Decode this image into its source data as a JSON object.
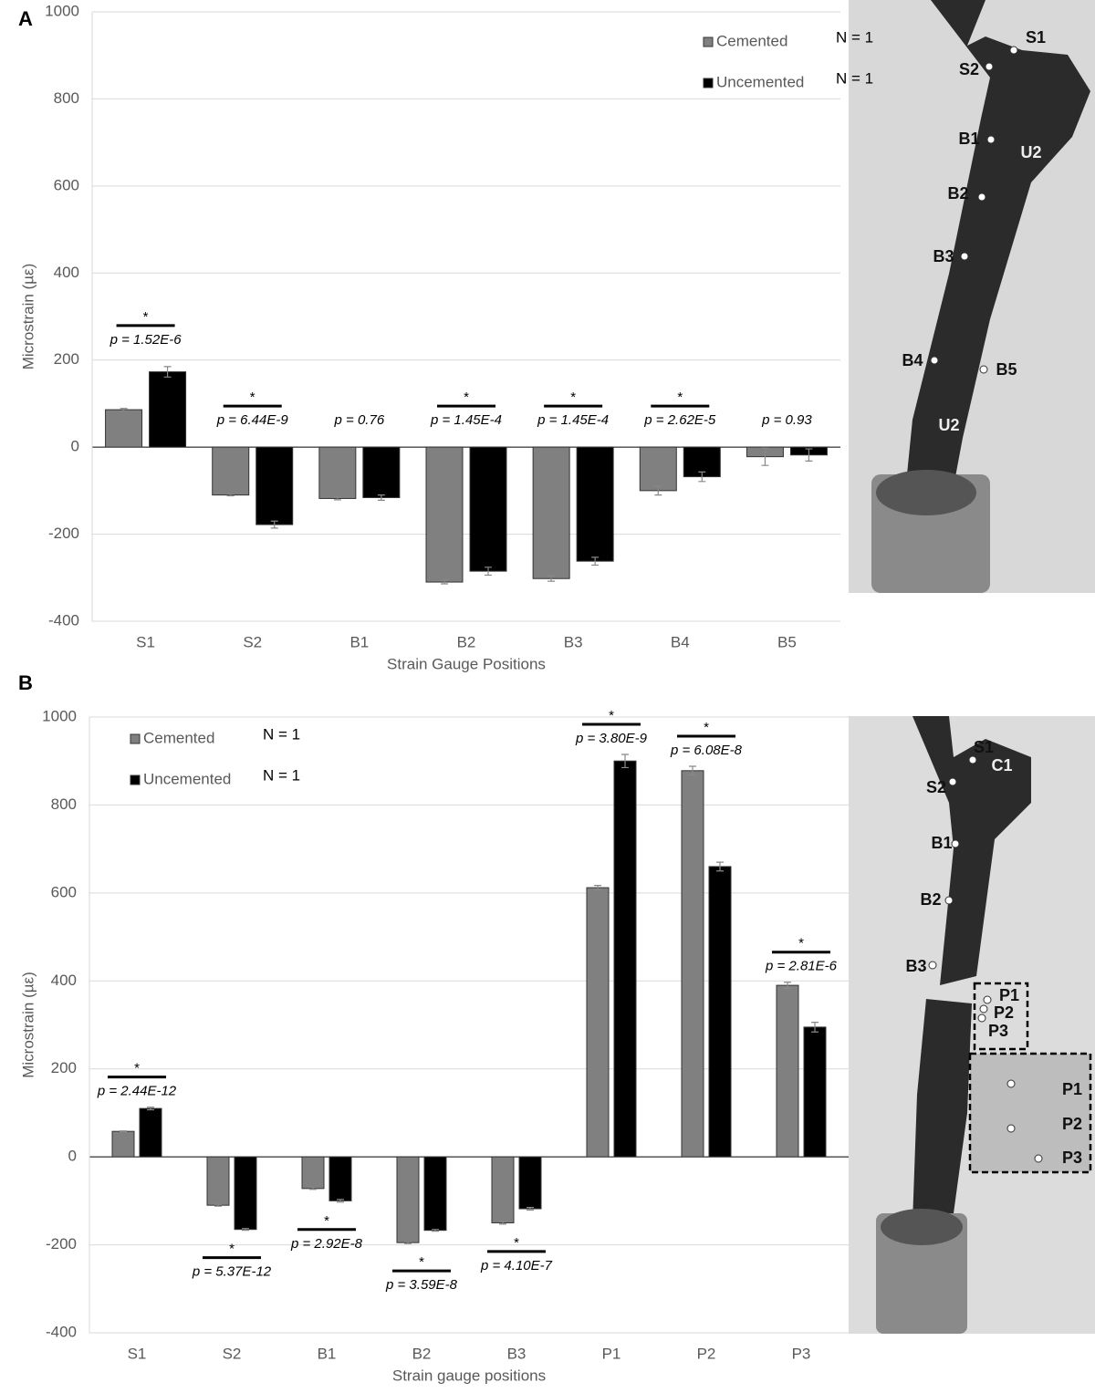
{
  "chart_data": [
    {
      "type": "bar",
      "panel": "A",
      "x_label": "Strain Gauge Positions",
      "y_label": "Microstrain (µε)",
      "categories": [
        "S1",
        "S2",
        "B1",
        "B2",
        "B3",
        "B4",
        "B5"
      ],
      "series": [
        {
          "name": "Cemented",
          "n_label": "N = 1",
          "color": "#808080",
          "values": [
            86,
            -110,
            -118,
            -310,
            -302,
            -100,
            -22
          ],
          "errors": [
            3,
            2,
            3,
            4,
            6,
            10,
            20
          ]
        },
        {
          "name": "Uncemented",
          "n_label": "N = 1",
          "color": "#000000",
          "values": [
            173,
            -178,
            -116,
            -285,
            -262,
            -68,
            -18
          ],
          "errors": [
            12,
            8,
            6,
            9,
            9,
            11,
            14
          ]
        }
      ],
      "annotations": [
        {
          "star": "*",
          "text": "p = 1.52E-6"
        },
        {
          "star": "*",
          "text": "p = 6.44E-9"
        },
        {
          "text": "p = 0.76"
        },
        {
          "star": "*",
          "text": "p = 1.45E-4"
        },
        {
          "star": "*",
          "text": "p = 1.45E-4"
        },
        {
          "star": "*",
          "text": "p = 2.62E-5"
        },
        {
          "text": "p = 0.93"
        }
      ],
      "annotation_position": "above",
      "ylim": [
        -400,
        1000
      ],
      "yticks": [
        -400,
        -200,
        0,
        200,
        400,
        600,
        800,
        1000
      ],
      "grid": true,
      "legend": "upper right",
      "photo_labels": [
        "S1",
        "S2",
        "B1",
        "B2",
        "B3",
        "B4",
        "B5",
        "U2",
        "U2"
      ]
    },
    {
      "type": "bar",
      "panel": "B",
      "x_label": "Strain gauge positions",
      "y_label": "Microstrain (µε)",
      "categories": [
        "S1",
        "S2",
        "B1",
        "B2",
        "B3",
        "P1",
        "P2",
        "P3"
      ],
      "series": [
        {
          "name": "Cemented",
          "n_label": "N = 1",
          "color": "#808080",
          "values": [
            58,
            -110,
            -72,
            -195,
            -150,
            612,
            878,
            390
          ],
          "errors": [
            1,
            2,
            2,
            2,
            3,
            5,
            10,
            7
          ]
        },
        {
          "name": "Uncemented",
          "n_label": "N = 1",
          "color": "#000000",
          "values": [
            110,
            -165,
            -100,
            -167,
            -118,
            900,
            660,
            295
          ],
          "errors": [
            3,
            2,
            3,
            2,
            3,
            15,
            10,
            11
          ]
        }
      ],
      "annotations": [
        {
          "star": "*",
          "text": "p = 2.44E-12"
        },
        {
          "star": "*",
          "text": "p = 5.37E-12"
        },
        {
          "star": "*",
          "text": "p = 2.92E-8"
        },
        {
          "star": "*",
          "text": "p = 3.59E-8"
        },
        {
          "star": "*",
          "text": "p = 4.10E-7"
        },
        {
          "star": "*",
          "text": "p = 3.80E-9"
        },
        {
          "star": "*",
          "text": "p = 6.08E-8"
        },
        {
          "star": "*",
          "text": "p = 2.81E-6"
        }
      ],
      "annotation_position": "outside",
      "ylim": [
        -400,
        1000
      ],
      "yticks": [
        -400,
        -200,
        0,
        200,
        400,
        600,
        800,
        1000
      ],
      "grid": true,
      "legend": "upper left",
      "photo_labels": [
        "S1",
        "S2",
        "B1",
        "B2",
        "B3",
        "P1",
        "P2",
        "P3",
        "P1",
        "P2",
        "P3",
        "C1"
      ]
    }
  ]
}
